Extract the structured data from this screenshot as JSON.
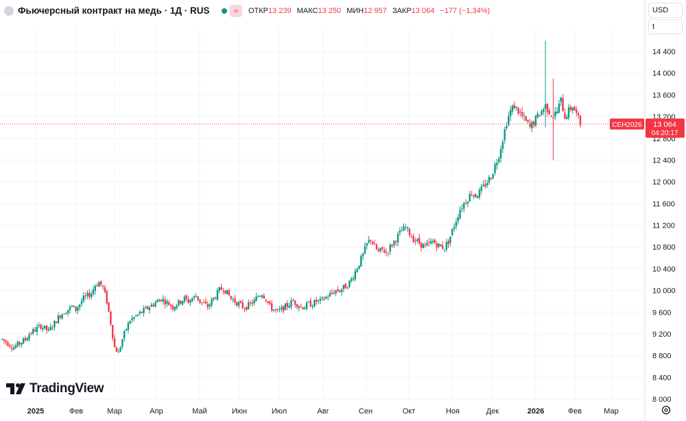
{
  "header": {
    "title": "Фьючерсный контракт на медь · 1Д · RUS",
    "ohlc": [
      {
        "label": "ОТКР",
        "value": "13 239"
      },
      {
        "label": "МАКС",
        "value": "13 250"
      },
      {
        "label": "МИН",
        "value": "12 957"
      },
      {
        "label": "ЗАКР",
        "value": "13 064"
      }
    ],
    "change": "−177 (−1,34%)",
    "currency": "USD",
    "unit": "t"
  },
  "price_label": {
    "symbol": "CEH2026",
    "price": "13 064",
    "countdown": "04:20:17"
  },
  "brand": "TradingView",
  "colors": {
    "up": "#089981",
    "down": "#f23645",
    "grid": "#f0f3fa",
    "text": "#131722"
  },
  "chart_data": {
    "type": "candlestick",
    "y_ticks": [
      "14 400",
      "14 000",
      "13 600",
      "13 200",
      "12 800",
      "12 400",
      "12 000",
      "11 600",
      "11 200",
      "10 800",
      "10 400",
      "10 000",
      "9 600",
      "9 200",
      "8 800",
      "8 400",
      "8 000"
    ],
    "y_range": [
      8000,
      14800
    ],
    "x_ticks": [
      {
        "label": "2025",
        "bold": true
      },
      {
        "label": "Фев",
        "bold": false
      },
      {
        "label": "Мар",
        "bold": false
      },
      {
        "label": "Апр",
        "bold": false
      },
      {
        "label": "Май",
        "bold": false
      },
      {
        "label": "Июн",
        "bold": false
      },
      {
        "label": "Июл",
        "bold": false
      },
      {
        "label": "Авг",
        "bold": false
      },
      {
        "label": "Сен",
        "bold": false
      },
      {
        "label": "Окт",
        "bold": false
      },
      {
        "label": "Ноя",
        "bold": false
      },
      {
        "label": "Дек",
        "bold": false
      },
      {
        "label": "2026",
        "bold": true
      },
      {
        "label": "Фев",
        "bold": false
      },
      {
        "label": "Мар",
        "bold": false
      }
    ],
    "last_price": 13064,
    "trend_closes": [
      9100,
      9050,
      9000,
      8950,
      9000,
      9050,
      9100,
      9200,
      9250,
      9300,
      9350,
      9300,
      9250,
      9350,
      9450,
      9550,
      9600,
      9650,
      9700,
      9650,
      9750,
      9850,
      9900,
      9950,
      10100,
      10150,
      10050,
      9800,
      9400,
      8950,
      8850,
      9100,
      9300,
      9450,
      9500,
      9550,
      9600,
      9650,
      9700,
      9750,
      9800,
      9850,
      9800,
      9750,
      9700,
      9750,
      9800,
      9850,
      9800,
      9850,
      9900,
      9800,
      9750,
      9700,
      9800,
      9900,
      10000,
      10050,
      9950,
      9850,
      9800,
      9750,
      9700,
      9700,
      9750,
      9800,
      9900,
      9950,
      9850,
      9700,
      9650,
      9600,
      9650,
      9700,
      9750,
      9800,
      9750,
      9700,
      9700,
      9750,
      9750,
      9800,
      9800,
      9850,
      9900,
      9950,
      10000,
      10000,
      10050,
      10100,
      10200,
      10350,
      10500,
      10650,
      10850,
      10950,
      10800,
      10700,
      10750,
      10700,
      10800,
      10900,
      11000,
      11100,
      11150,
      11050,
      10950,
      10900,
      10850,
      10800,
      10850,
      10900,
      10850,
      10800,
      10800,
      10900,
      11100,
      11300,
      11500,
      11600,
      11700,
      11800,
      11750,
      11800,
      11900,
      12000,
      12100,
      12300,
      12500,
      12800,
      13100,
      13300,
      13400,
      13300,
      13200,
      13100,
      13000,
      13100,
      13200,
      13300,
      13400,
      13300,
      13200,
      13300,
      13500,
      13200,
      13300,
      13400,
      13239,
      13064
    ],
    "spikes": [
      {
        "index": 140,
        "high": 14600,
        "low": 13000
      },
      {
        "index": 142,
        "high": 13900,
        "low": 12400
      }
    ]
  }
}
